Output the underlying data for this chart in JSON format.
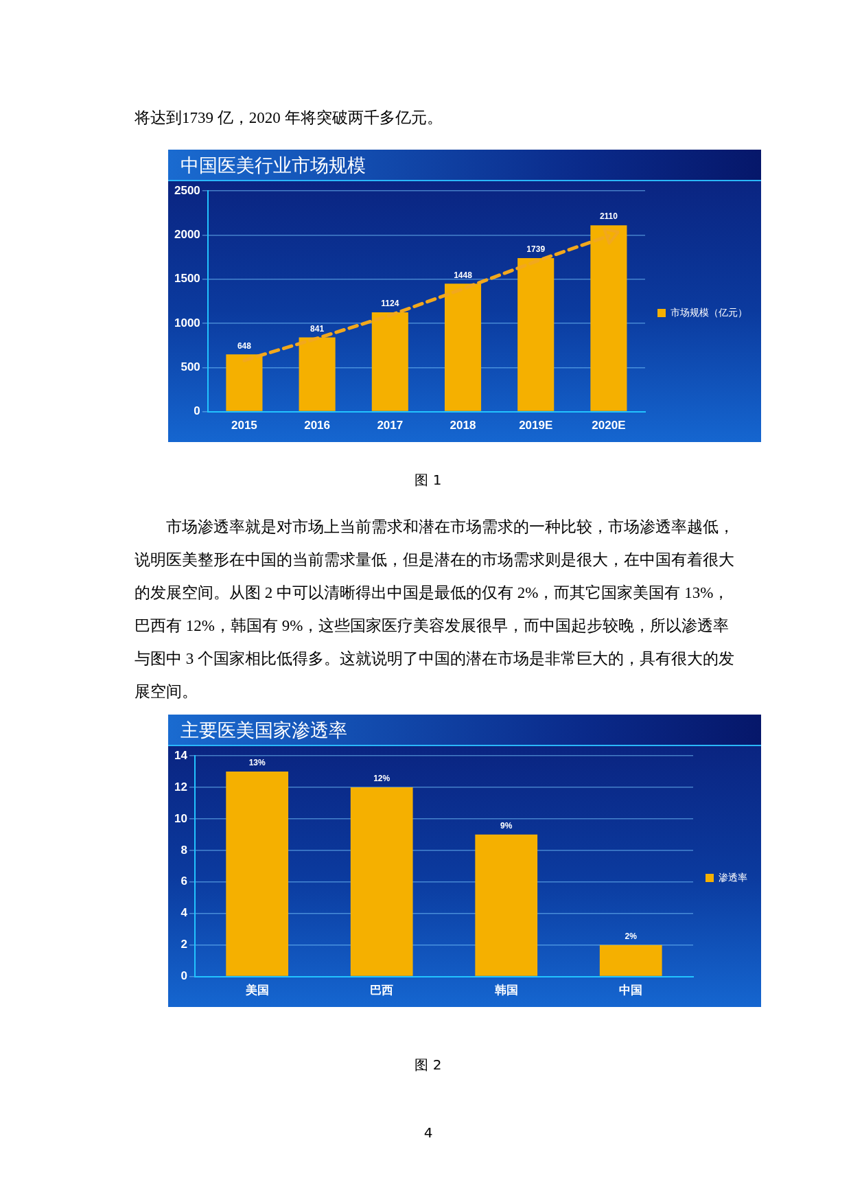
{
  "chart_data": [
    {
      "type": "bar",
      "title": "中国医美行业市场规模",
      "categories": [
        "2015",
        "2016",
        "2017",
        "2018",
        "2019E",
        "2020E"
      ],
      "series": [
        {
          "name": "市场规模（亿元）",
          "color": "#f5b000",
          "values": [
            648,
            841,
            1124,
            1448,
            1739,
            2110
          ],
          "value_labels": [
            "648",
            "841",
            "1124",
            "1448",
            "1739",
            "2110"
          ]
        },
        {
          "type": "line",
          "color": "#f2a81d",
          "values": [
            580,
            830,
            1090,
            1390,
            1700,
            1990
          ],
          "marker": "none",
          "line_style": "dashed"
        }
      ],
      "ylim": [
        0,
        2500
      ],
      "yticks": [
        0,
        500,
        1000,
        1500,
        2000,
        2500
      ],
      "grid": "y",
      "legend": "right",
      "annotations": [
        "将达到1739 亿，2020 年将突破两千多亿元。",
        "图 1"
      ]
    },
    {
      "type": "bar",
      "title": "主要医美国家渗透率",
      "categories": [
        "美国",
        "巴西",
        "韩国",
        "中国"
      ],
      "series": [
        {
          "name": "渗透率",
          "color": "#f5b000",
          "values": [
            13,
            12,
            9,
            2
          ],
          "value_labels": [
            "13%",
            "12%",
            "9%",
            "2%"
          ]
        }
      ],
      "ylim": [
        0,
        14
      ],
      "yticks": [
        0,
        2,
        4,
        6,
        8,
        10,
        12,
        14
      ],
      "grid": "y",
      "legend": "right",
      "annotations": [
        "市场渗透率就是对市场上当前需求和潜在市场需求的一种比较，市场渗透率越低，说明医美整形在中国的当前需求量低，但是潜在的市场需求则是很大，在中国有着很大的发展空间。从图 2 中可以清晰得出中国是最低的仅有 2%，而其它国家美国有 13%，巴西有 12%，韩国有 9%，这些国家医疗美容发展很早，而中国起步较晚，所以渗透率与图中 3 个国家相比低得多。这就说明了中国的潜在市场是非常巨大的，具有很大的发展空间。",
        "图 2",
        "4"
      ]
    }
  ]
}
